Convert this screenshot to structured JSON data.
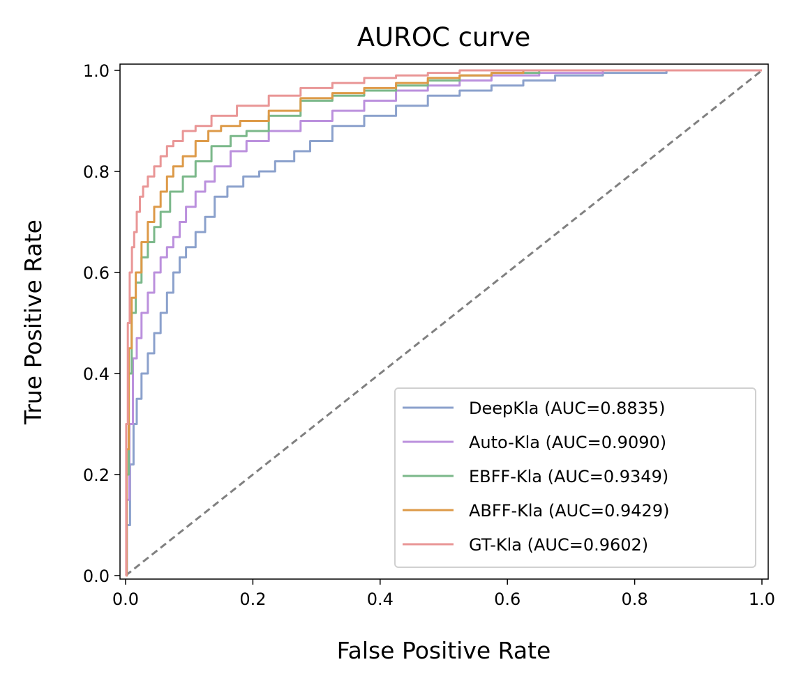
{
  "chart_data": {
    "type": "line",
    "title": "AUROC curve",
    "xlabel": "False Positive Rate",
    "ylabel": "True Positive Rate",
    "xlim": [
      0.0,
      1.0
    ],
    "ylim": [
      0.0,
      1.0
    ],
    "grid": false,
    "legend_position": "lower-right",
    "x_ticks": [
      "0.0",
      "0.2",
      "0.4",
      "0.6",
      "0.8",
      "1.0"
    ],
    "y_ticks": [
      "0.0",
      "0.2",
      "0.4",
      "0.6",
      "0.8",
      "1.0"
    ],
    "reference_line": {
      "style": "dashed",
      "color": "#808080",
      "points": [
        [
          0,
          0
        ],
        [
          1,
          1
        ]
      ]
    },
    "series": [
      {
        "name": "DeepKla (AUC=0.8835)",
        "color": "#8ba1cc",
        "points": [
          [
            0,
            0
          ],
          [
            0.004,
            0.1
          ],
          [
            0.01,
            0.22
          ],
          [
            0.015,
            0.3
          ],
          [
            0.02,
            0.35
          ],
          [
            0.03,
            0.4
          ],
          [
            0.04,
            0.44
          ],
          [
            0.05,
            0.48
          ],
          [
            0.06,
            0.52
          ],
          [
            0.07,
            0.56
          ],
          [
            0.08,
            0.6
          ],
          [
            0.09,
            0.63
          ],
          [
            0.1,
            0.65
          ],
          [
            0.12,
            0.68
          ],
          [
            0.13,
            0.71
          ],
          [
            0.15,
            0.75
          ],
          [
            0.17,
            0.77
          ],
          [
            0.2,
            0.79
          ],
          [
            0.22,
            0.8
          ],
          [
            0.25,
            0.82
          ],
          [
            0.28,
            0.84
          ],
          [
            0.3,
            0.86
          ],
          [
            0.35,
            0.89
          ],
          [
            0.4,
            0.91
          ],
          [
            0.45,
            0.93
          ],
          [
            0.5,
            0.95
          ],
          [
            0.55,
            0.96
          ],
          [
            0.6,
            0.97
          ],
          [
            0.65,
            0.98
          ],
          [
            0.7,
            0.99
          ],
          [
            0.8,
            0.995
          ],
          [
            0.9,
            1.0
          ],
          [
            1.0,
            1.0
          ]
        ]
      },
      {
        "name": "Auto-Kla (AUC=0.9090)",
        "color": "#bb90dd",
        "points": [
          [
            0,
            0
          ],
          [
            0.004,
            0.15
          ],
          [
            0.008,
            0.3
          ],
          [
            0.015,
            0.43
          ],
          [
            0.02,
            0.47
          ],
          [
            0.03,
            0.52
          ],
          [
            0.04,
            0.56
          ],
          [
            0.05,
            0.6
          ],
          [
            0.06,
            0.63
          ],
          [
            0.07,
            0.65
          ],
          [
            0.08,
            0.67
          ],
          [
            0.09,
            0.7
          ],
          [
            0.1,
            0.73
          ],
          [
            0.12,
            0.76
          ],
          [
            0.13,
            0.78
          ],
          [
            0.15,
            0.81
          ],
          [
            0.18,
            0.84
          ],
          [
            0.2,
            0.86
          ],
          [
            0.25,
            0.88
          ],
          [
            0.3,
            0.9
          ],
          [
            0.35,
            0.92
          ],
          [
            0.4,
            0.94
          ],
          [
            0.45,
            0.96
          ],
          [
            0.5,
            0.97
          ],
          [
            0.55,
            0.98
          ],
          [
            0.6,
            0.99
          ],
          [
            0.7,
            0.995
          ],
          [
            0.8,
            1.0
          ],
          [
            1.0,
            1.0
          ]
        ]
      },
      {
        "name": "EBFF-Kla (AUC=0.9349)",
        "color": "#7bb88a",
        "points": [
          [
            0,
            0
          ],
          [
            0.003,
            0.2
          ],
          [
            0.007,
            0.4
          ],
          [
            0.012,
            0.52
          ],
          [
            0.02,
            0.58
          ],
          [
            0.03,
            0.63
          ],
          [
            0.04,
            0.66
          ],
          [
            0.05,
            0.69
          ],
          [
            0.06,
            0.72
          ],
          [
            0.08,
            0.76
          ],
          [
            0.1,
            0.79
          ],
          [
            0.12,
            0.82
          ],
          [
            0.15,
            0.85
          ],
          [
            0.18,
            0.87
          ],
          [
            0.2,
            0.88
          ],
          [
            0.25,
            0.91
          ],
          [
            0.3,
            0.94
          ],
          [
            0.35,
            0.95
          ],
          [
            0.4,
            0.96
          ],
          [
            0.45,
            0.97
          ],
          [
            0.5,
            0.98
          ],
          [
            0.55,
            0.99
          ],
          [
            0.6,
            0.995
          ],
          [
            0.7,
            1.0
          ],
          [
            1.0,
            1.0
          ]
        ]
      },
      {
        "name": "ABFF-Kla (AUC=0.9429)",
        "color": "#dd9a48",
        "points": [
          [
            0,
            0
          ],
          [
            0.003,
            0.25
          ],
          [
            0.007,
            0.45
          ],
          [
            0.012,
            0.55
          ],
          [
            0.02,
            0.6
          ],
          [
            0.03,
            0.66
          ],
          [
            0.04,
            0.7
          ],
          [
            0.05,
            0.73
          ],
          [
            0.06,
            0.76
          ],
          [
            0.07,
            0.79
          ],
          [
            0.08,
            0.81
          ],
          [
            0.1,
            0.83
          ],
          [
            0.12,
            0.86
          ],
          [
            0.14,
            0.88
          ],
          [
            0.16,
            0.89
          ],
          [
            0.2,
            0.9
          ],
          [
            0.25,
            0.92
          ],
          [
            0.3,
            0.945
          ],
          [
            0.35,
            0.955
          ],
          [
            0.4,
            0.965
          ],
          [
            0.45,
            0.975
          ],
          [
            0.5,
            0.985
          ],
          [
            0.55,
            0.99
          ],
          [
            0.6,
            0.995
          ],
          [
            0.65,
            1.0
          ],
          [
            1.0,
            1.0
          ]
        ]
      },
      {
        "name": "GT-Kla (AUC=0.9602)",
        "color": "#e99696",
        "points": [
          [
            0,
            0
          ],
          [
            0.002,
            0.3
          ],
          [
            0.005,
            0.5
          ],
          [
            0.008,
            0.6
          ],
          [
            0.012,
            0.65
          ],
          [
            0.015,
            0.68
          ],
          [
            0.02,
            0.72
          ],
          [
            0.025,
            0.75
          ],
          [
            0.03,
            0.77
          ],
          [
            0.04,
            0.79
          ],
          [
            0.05,
            0.81
          ],
          [
            0.06,
            0.83
          ],
          [
            0.07,
            0.85
          ],
          [
            0.08,
            0.86
          ],
          [
            0.1,
            0.88
          ],
          [
            0.12,
            0.89
          ],
          [
            0.15,
            0.91
          ],
          [
            0.2,
            0.93
          ],
          [
            0.25,
            0.95
          ],
          [
            0.3,
            0.965
          ],
          [
            0.35,
            0.975
          ],
          [
            0.4,
            0.985
          ],
          [
            0.45,
            0.99
          ],
          [
            0.5,
            0.995
          ],
          [
            0.55,
            1.0
          ],
          [
            1.0,
            1.0
          ]
        ]
      }
    ]
  }
}
